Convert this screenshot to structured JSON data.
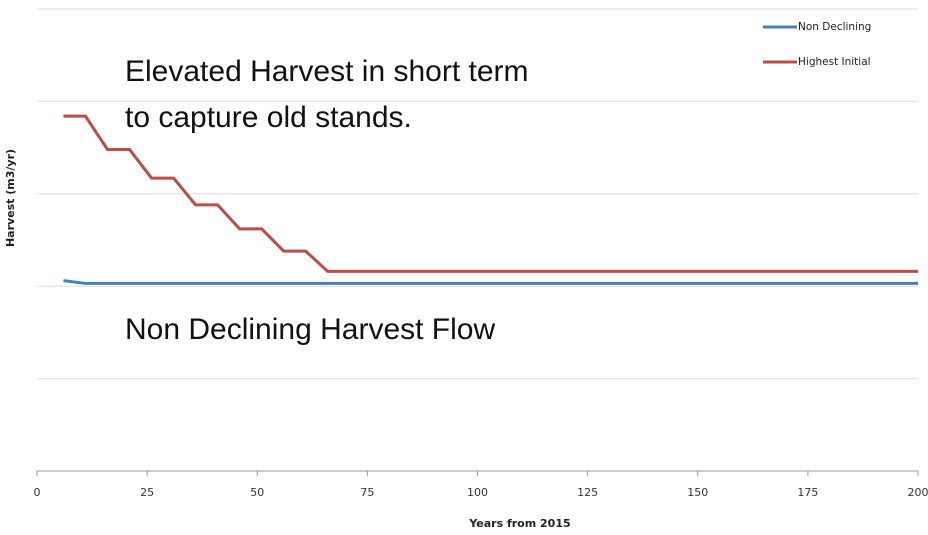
{
  "chart_data": {
    "type": "line",
    "xlabel": "Years from 2015",
    "ylabel": "Harvest (m3/yr)",
    "annotations": [
      {
        "lines": [
          "Elevated Harvest in short term",
          "to capture old stands."
        ]
      },
      {
        "lines": [
          "Non Declining Harvest Flow"
        ]
      }
    ],
    "xlim": [
      0,
      200
    ],
    "xticks": [
      0,
      25,
      50,
      75,
      100,
      125,
      150,
      175,
      200
    ],
    "ylim": [
      0,
      5
    ],
    "yticks": [
      0,
      1,
      2,
      3,
      4,
      5
    ],
    "grid": true,
    "legend": "top-right",
    "series": [
      {
        "name": "Non Declining",
        "color": "#4a7ebb",
        "x": [
          6,
          11,
          200
        ],
        "values": [
          2.06,
          2.03,
          2.03
        ]
      },
      {
        "name": "Highest Initial",
        "color": "#be4b48",
        "x": [
          6,
          11,
          16,
          21,
          26,
          31,
          36,
          41,
          46,
          51,
          56,
          61,
          66,
          200
        ],
        "values": [
          3.84,
          3.84,
          3.48,
          3.48,
          3.17,
          3.17,
          2.88,
          2.88,
          2.62,
          2.62,
          2.38,
          2.38,
          2.16,
          2.16
        ]
      }
    ]
  }
}
